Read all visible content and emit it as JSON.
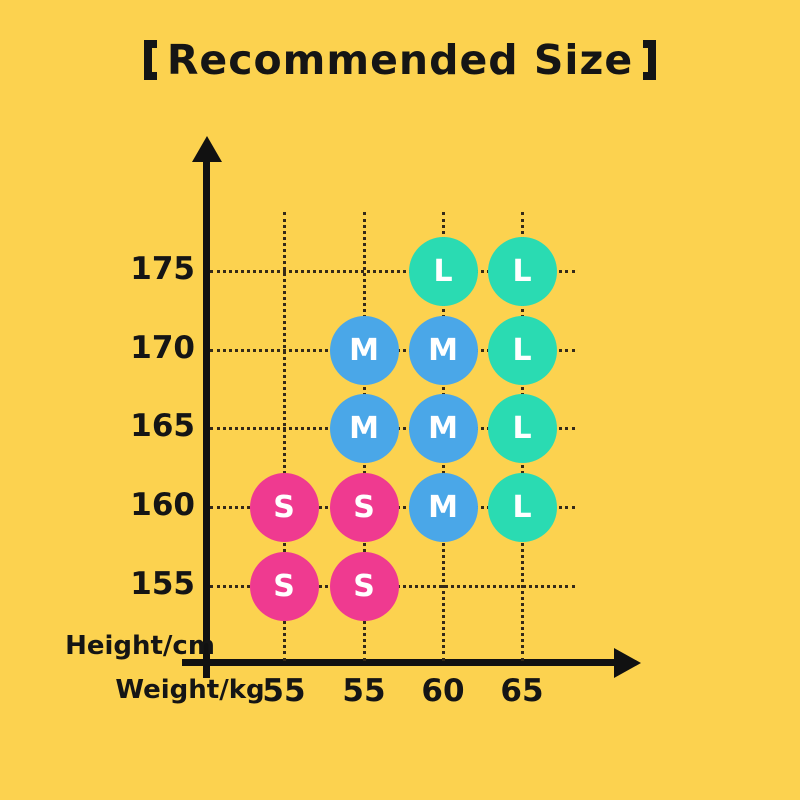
{
  "background_color": "#FCD24F",
  "title": {
    "full": "【Recommended Size】",
    "left_bracket": "【",
    "text": "Recommended Size",
    "right_bracket": "】"
  },
  "chart_data": {
    "type": "scatter",
    "title": "【Recommended Size】",
    "xlabel": "Weight/kg",
    "ylabel": "Height/cm",
    "x_tick_labels": [
      "55",
      "55",
      "60",
      "65"
    ],
    "y_tick_labels": [
      "175",
      "170",
      "165",
      "160",
      "155"
    ],
    "grid": "dotted",
    "legend": "none",
    "circle_text_color": "#FFFFFF",
    "axis_color": "#111111",
    "size_colors": {
      "S": "#EF3A90",
      "M": "#4AA7E8",
      "L": "#2ADBB2"
    },
    "cells": [
      [
        null,
        null,
        "L",
        "L"
      ],
      [
        null,
        "M",
        "M",
        "L"
      ],
      [
        null,
        "M",
        "M",
        "L"
      ],
      [
        "S",
        "S",
        "M",
        "L"
      ],
      [
        "S",
        "S",
        null,
        null
      ]
    ]
  }
}
